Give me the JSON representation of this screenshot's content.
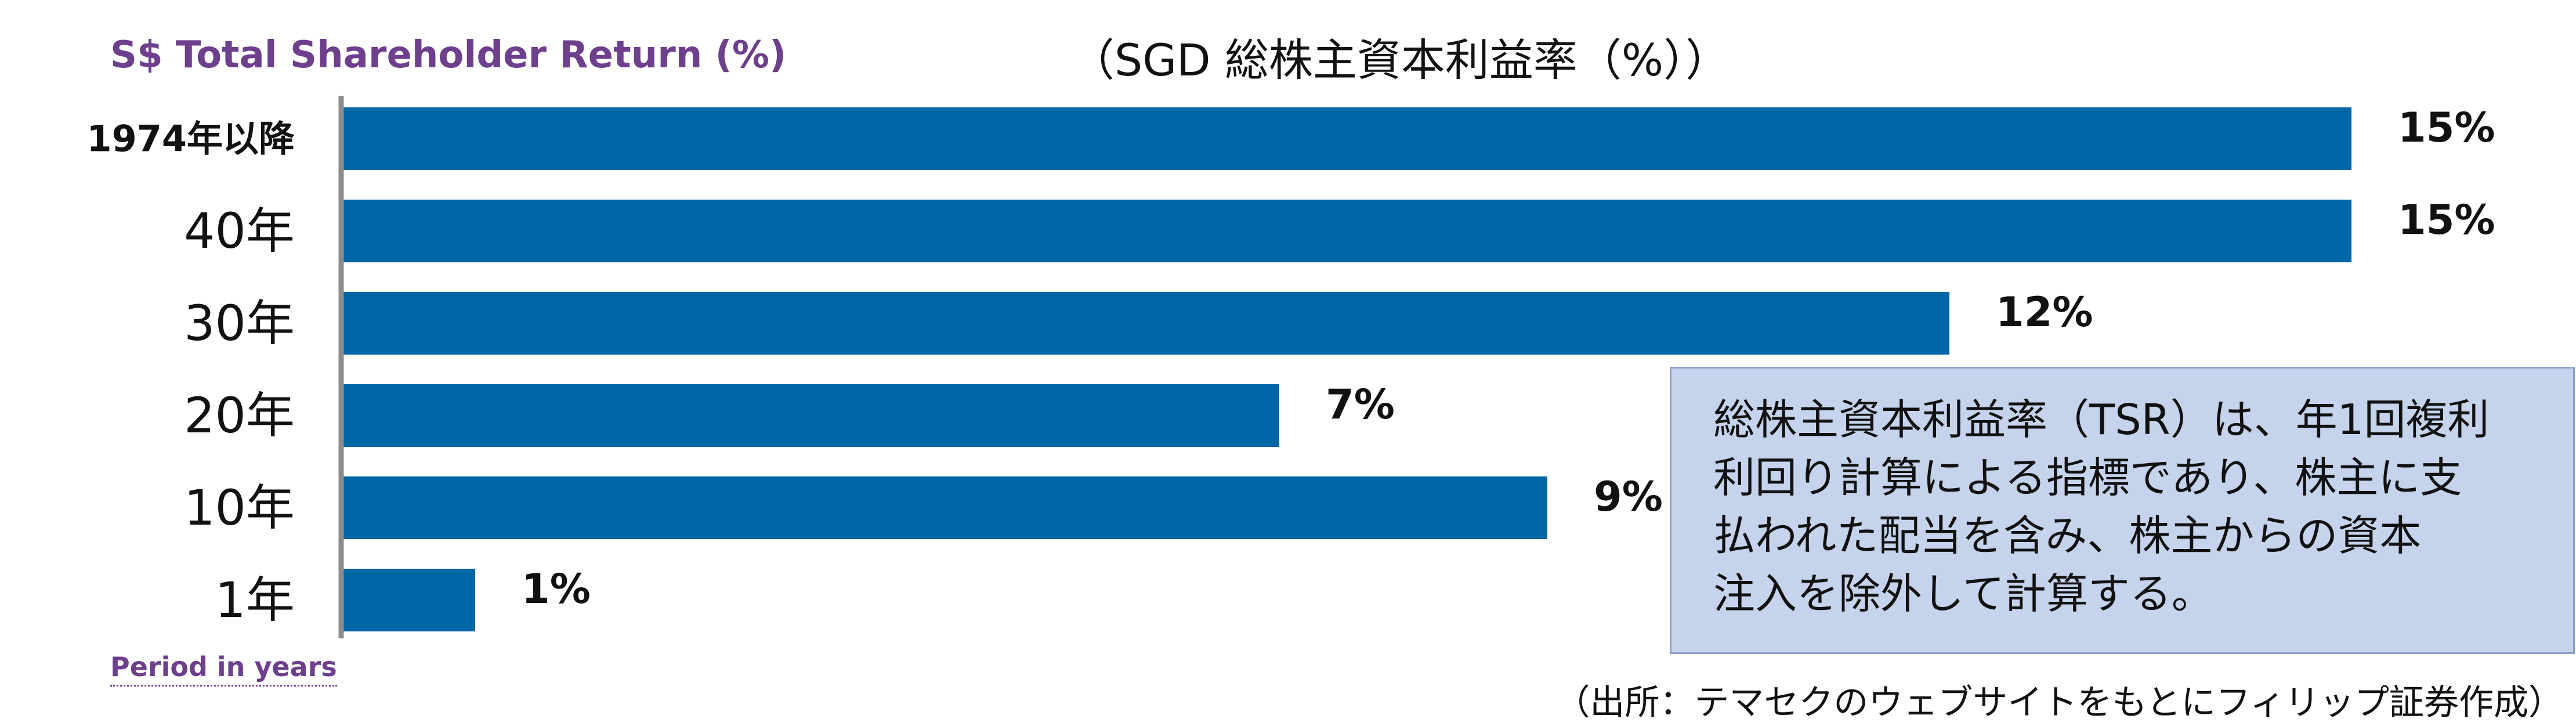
{
  "header": {
    "title_en": "S$ Total Shareholder Return (%)",
    "title_jp": "（SGD 総株主資本利益率（%））"
  },
  "axis": {
    "period_label": "Period in years"
  },
  "note": {
    "lines": [
      "総株主資本利益率（TSR）は、年1回複利",
      "利回り計算による指標であり、株主に支",
      "払われた配当を含み、株主からの資本",
      "注入を除外して計算する。"
    ]
  },
  "source": "（出所：テマセクのウェブサイトをもとにフィリップ証券作成）",
  "colors": {
    "bar": "#0066a6",
    "axis": "#8c8c8c",
    "title_en": "#6d3f8c",
    "note_bg": "#c5d4ec"
  },
  "chart_data": {
    "type": "bar",
    "orientation": "horizontal",
    "title": "S$ Total Shareholder Return (%)",
    "ylabel": "Period in years",
    "categories": [
      "1974年以降",
      "40年",
      "30年",
      "20年",
      "10年",
      "1年"
    ],
    "values": [
      15,
      15,
      12,
      7,
      9,
      1
    ],
    "value_labels": [
      "15%",
      "15%",
      "12%",
      "7%",
      "9%",
      "1%"
    ],
    "unit": "%",
    "grid": false,
    "legend": "none"
  }
}
